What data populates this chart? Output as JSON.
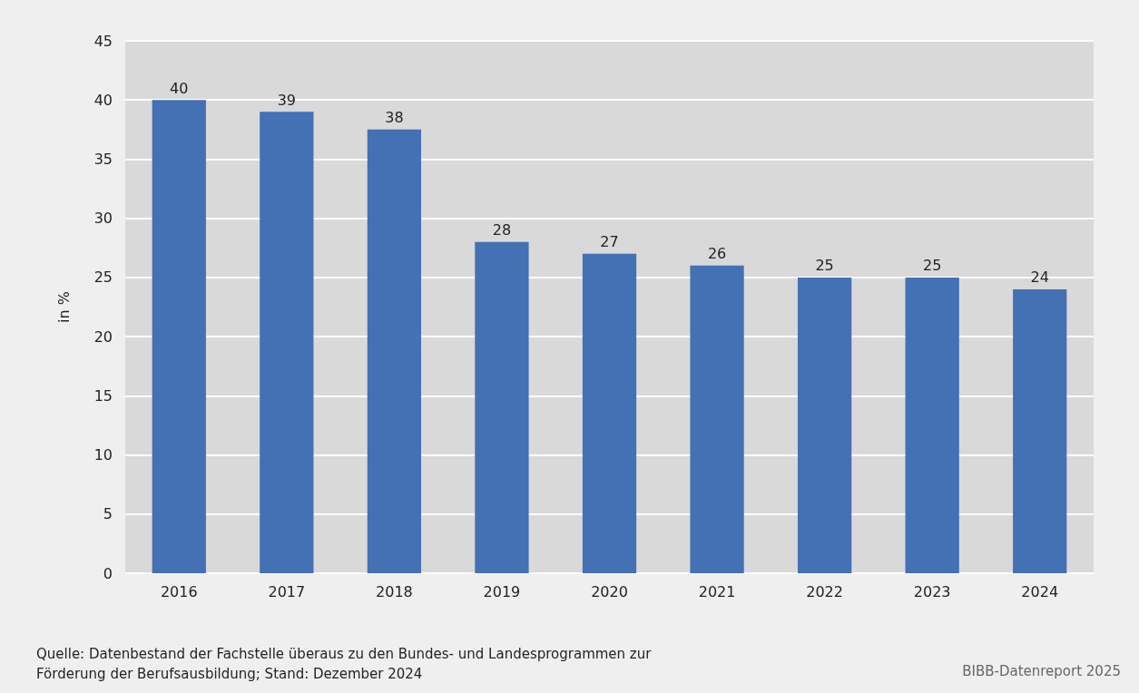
{
  "chart_data": {
    "type": "bar",
    "ylabel": "in %",
    "categories": [
      "2016",
      "2017",
      "2018",
      "2019",
      "2020",
      "2021",
      "2022",
      "2023",
      "2024"
    ],
    "values": [
      40,
      39,
      37.5,
      28,
      27,
      26,
      25,
      25,
      24
    ],
    "value_labels": [
      "40",
      "39",
      "38",
      "28",
      "27",
      "26",
      "25",
      "25",
      "24"
    ],
    "color": "#4470b4",
    "ylim": [
      0,
      45
    ],
    "yticks": [
      0,
      5,
      10,
      15,
      20,
      25,
      30,
      35,
      40,
      45
    ],
    "grid": "y",
    "annotations": [
      "Quelle: Datenbestand der Fachstelle überaus zu den Bundes- und Landesprogrammen zur Förderung der Berufsausbildung; Stand: Dezember 2024",
      "BIBB-Datenreport 2025"
    ]
  }
}
